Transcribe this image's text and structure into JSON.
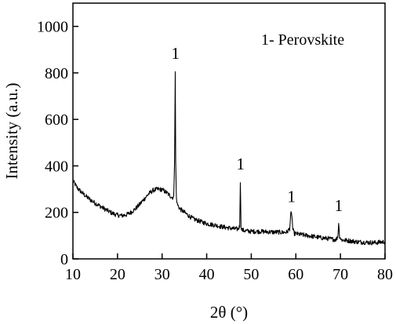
{
  "chart_data": {
    "type": "line",
    "xlabel": "2θ (°)",
    "ylabel": "Intensity (a.u.)",
    "xlim": [
      10,
      80
    ],
    "ylim": [
      0,
      1100
    ],
    "x_ticks": [
      10,
      20,
      30,
      40,
      50,
      60,
      70,
      80
    ],
    "y_ticks": [
      0,
      200,
      400,
      600,
      800,
      1000
    ],
    "x_tick_labels": [
      "10",
      "20",
      "30",
      "40",
      "50",
      "60",
      "70",
      "80"
    ],
    "y_tick_labels": [
      "0",
      "200",
      "400",
      "600",
      "800",
      "1000"
    ],
    "grid": false,
    "legend_text": "1- Perovskite",
    "series": [
      {
        "color": "#000000",
        "x": [
          10,
          11,
          12,
          13,
          14,
          15,
          16,
          17,
          18,
          19,
          20,
          21,
          22,
          23,
          24,
          25,
          26,
          27,
          28,
          29,
          30,
          31,
          32,
          32.6,
          32.8,
          32.95,
          33.05,
          33.2,
          33.4,
          34,
          35,
          36,
          37,
          38,
          39,
          40,
          41,
          42,
          43,
          44,
          45,
          46,
          47,
          47.4,
          47.55,
          47.7,
          47.9,
          48.3,
          49,
          50,
          51,
          52,
          53,
          54,
          55,
          56,
          57,
          58,
          58.6,
          58.9,
          59.1,
          59.3,
          59.6,
          60,
          61,
          62,
          63,
          64,
          65,
          66,
          67,
          68,
          69,
          69.4,
          69.6,
          69.8,
          70.2,
          71,
          72,
          73,
          74,
          75,
          76,
          77,
          78,
          79,
          80
        ],
        "y": [
          335,
          305,
          285,
          268,
          253,
          240,
          228,
          216,
          205,
          195,
          188,
          186,
          190,
          200,
          215,
          235,
          258,
          280,
          295,
          300,
          298,
          285,
          268,
          262,
          420,
          805,
          420,
          265,
          235,
          215,
          200,
          185,
          172,
          165,
          158,
          152,
          148,
          145,
          140,
          136,
          133,
          130,
          128,
          140,
          335,
          145,
          125,
          122,
          120,
          118,
          118,
          118,
          117,
          116,
          115,
          115,
          114,
          115,
          130,
          195,
          190,
          130,
          110,
          108,
          105,
          102,
          99,
          96,
          93,
          90,
          88,
          85,
          83,
          95,
          155,
          98,
          82,
          80,
          78,
          75,
          73,
          72,
          71,
          70,
          70,
          72,
          74
        ]
      }
    ],
    "annotations": [
      {
        "text": "1",
        "x": 33.0,
        "y": 860
      },
      {
        "text": "1",
        "x": 47.6,
        "y": 385
      },
      {
        "text": "1",
        "x": 59.0,
        "y": 245
      },
      {
        "text": "1",
        "x": 69.6,
        "y": 205
      }
    ]
  }
}
